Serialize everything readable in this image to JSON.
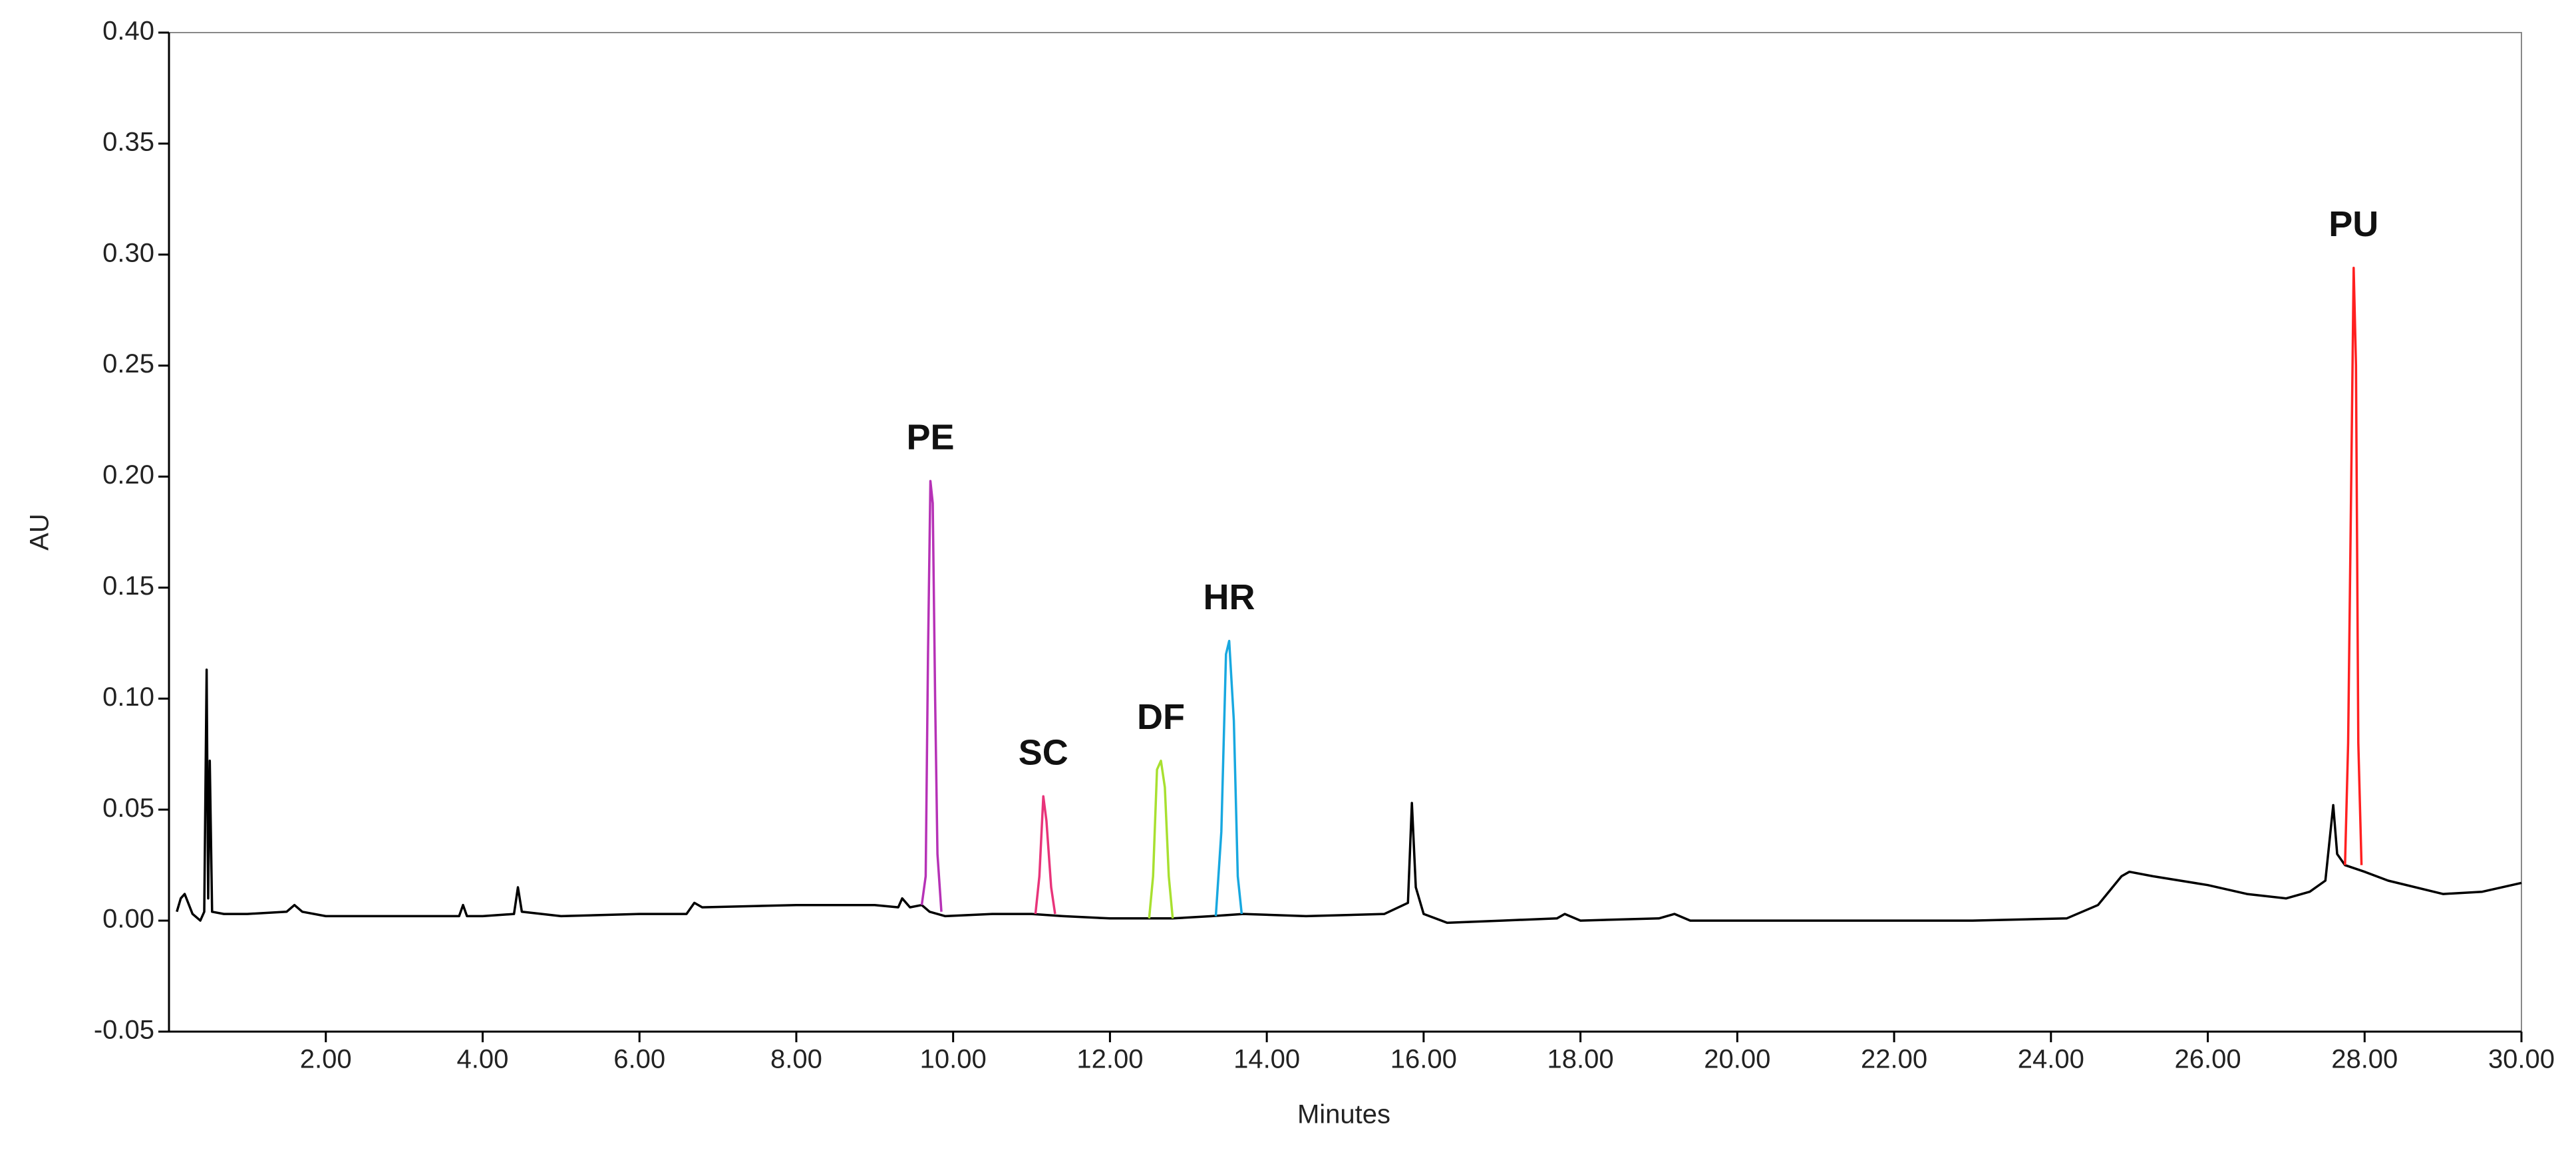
{
  "chart_data": {
    "type": "line",
    "xlabel": "Minutes",
    "ylabel": "AU",
    "xlim": [
      0,
      30
    ],
    "ylim": [
      -0.05,
      0.4
    ],
    "xticks": [
      {
        "value": 2,
        "label": "2.00"
      },
      {
        "value": 4,
        "label": "4.00"
      },
      {
        "value": 6,
        "label": "6.00"
      },
      {
        "value": 8,
        "label": "8.00"
      },
      {
        "value": 10,
        "label": "10.00"
      },
      {
        "value": 12,
        "label": "12.00"
      },
      {
        "value": 14,
        "label": "14.00"
      },
      {
        "value": 16,
        "label": "16.00"
      },
      {
        "value": 18,
        "label": "18.00"
      },
      {
        "value": 20,
        "label": "20.00"
      },
      {
        "value": 22,
        "label": "22.00"
      },
      {
        "value": 24,
        "label": "24.00"
      },
      {
        "value": 26,
        "label": "26.00"
      },
      {
        "value": 28,
        "label": "28.00"
      },
      {
        "value": 30,
        "label": "30.00"
      }
    ],
    "yticks": [
      {
        "value": -0.05,
        "label": "-0.05"
      },
      {
        "value": 0,
        "label": "0.00"
      },
      {
        "value": 0.05,
        "label": "0.05"
      },
      {
        "value": 0.1,
        "label": "0.10"
      },
      {
        "value": 0.15,
        "label": "0.15"
      },
      {
        "value": 0.2,
        "label": "0.20"
      },
      {
        "value": 0.25,
        "label": "0.25"
      },
      {
        "value": 0.3,
        "label": "0.30"
      },
      {
        "value": 0.35,
        "label": "0.35"
      },
      {
        "value": 0.4,
        "label": "0.40"
      }
    ],
    "series": [
      {
        "color": "#000000",
        "x": [
          0.1,
          0.15,
          0.2,
          0.3,
          0.4,
          0.45,
          0.48,
          0.5,
          0.52,
          0.55,
          0.7,
          1.0,
          1.5,
          1.6,
          1.7,
          2.0,
          3.0,
          3.7,
          3.75,
          3.8,
          4.0,
          4.4,
          4.45,
          4.5,
          5.0,
          6.0,
          6.6,
          6.7,
          6.8,
          8.0,
          9.0,
          9.3,
          9.35,
          9.45,
          9.6,
          9.7,
          9.9,
          10.5,
          11.0,
          11.4,
          12.0,
          12.5,
          12.8,
          13.3,
          13.7,
          14.5,
          15.5,
          15.8,
          15.85,
          15.9,
          16.0,
          16.3,
          17.0,
          17.7,
          17.8,
          18.0,
          19.0,
          19.2,
          19.4,
          21.0,
          23.0,
          24.2,
          24.6,
          24.9,
          25.0,
          25.3,
          26.0,
          26.5,
          27.0,
          27.3,
          27.5,
          27.6,
          27.65,
          27.75,
          28.0,
          28.3,
          29.0,
          29.5,
          30.0
        ],
        "values": [
          0.004,
          0.01,
          0.012,
          0.003,
          0.0,
          0.004,
          0.113,
          0.01,
          0.072,
          0.004,
          0.003,
          0.003,
          0.004,
          0.007,
          0.004,
          0.002,
          0.002,
          0.002,
          0.007,
          0.002,
          0.002,
          0.003,
          0.015,
          0.004,
          0.002,
          0.003,
          0.003,
          0.008,
          0.006,
          0.007,
          0.007,
          0.006,
          0.01,
          0.006,
          0.007,
          0.004,
          0.002,
          0.003,
          0.003,
          0.002,
          0.001,
          0.001,
          0.001,
          0.002,
          0.003,
          0.002,
          0.003,
          0.008,
          0.053,
          0.015,
          0.003,
          -0.001,
          0.0,
          0.001,
          0.003,
          0.0,
          0.001,
          0.003,
          0.0,
          0.0,
          0.0,
          0.001,
          0.007,
          0.02,
          0.022,
          0.02,
          0.016,
          0.012,
          0.01,
          0.013,
          0.018,
          0.052,
          0.03,
          0.025,
          0.022,
          0.018,
          0.012,
          0.013,
          0.017
        ]
      },
      {
        "name": "PE",
        "color": "#b632b6",
        "x": [
          9.6,
          9.65,
          9.68,
          9.71,
          9.74,
          9.77,
          9.8,
          9.85
        ],
        "values": [
          0.007,
          0.02,
          0.12,
          0.198,
          0.188,
          0.1,
          0.03,
          0.004
        ]
      },
      {
        "name": "SC",
        "color": "#e8347a",
        "x": [
          11.05,
          11.1,
          11.15,
          11.19,
          11.25,
          11.3
        ],
        "values": [
          0.003,
          0.02,
          0.056,
          0.045,
          0.015,
          0.003
        ]
      },
      {
        "name": "DF",
        "color": "#a8e030",
        "x": [
          12.5,
          12.55,
          12.6,
          12.65,
          12.7,
          12.75,
          12.8
        ],
        "values": [
          0.001,
          0.02,
          0.068,
          0.072,
          0.06,
          0.02,
          0.001
        ]
      },
      {
        "name": "HR",
        "color": "#18a8e0",
        "x": [
          13.35,
          13.42,
          13.48,
          13.52,
          13.58,
          13.63,
          13.68
        ],
        "values": [
          0.002,
          0.04,
          0.12,
          0.126,
          0.09,
          0.02,
          0.003
        ]
      },
      {
        "name": "PU",
        "color": "#ff2020",
        "x": [
          27.75,
          27.79,
          27.83,
          27.86,
          27.89,
          27.92,
          27.96
        ],
        "values": [
          0.025,
          0.08,
          0.2,
          0.294,
          0.25,
          0.08,
          0.025
        ]
      }
    ]
  }
}
